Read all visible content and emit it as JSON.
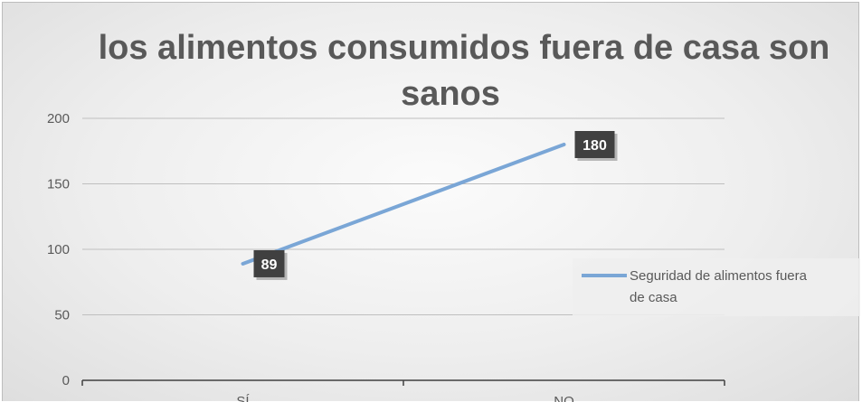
{
  "chart_data": {
    "type": "line",
    "title": "los alimentos consumidos fuera de casa son sanos",
    "categories": [
      "SÍ",
      "NO"
    ],
    "series": [
      {
        "name": "Seguridad de alimentos fuera de casa",
        "values": [
          89,
          180
        ],
        "color": "#7aa6d6"
      }
    ],
    "data_labels": [
      "89",
      "180"
    ],
    "y_ticks": [
      "0",
      "50",
      "100",
      "150",
      "200"
    ],
    "ylim": [
      0,
      200
    ],
    "grid": true,
    "legend_position": "right"
  },
  "legend": {
    "line1": "Seguridad de alimentos fuera",
    "line2": "de casa"
  },
  "title_lines": [
    "los alimentos consumidos fuera de casa son",
    "sanos"
  ],
  "colors": {
    "series": "#7aa6d6",
    "data_label_bg": "#404040",
    "gridline": "#bfbfbf",
    "axis": "#404040",
    "text": "#595959"
  }
}
